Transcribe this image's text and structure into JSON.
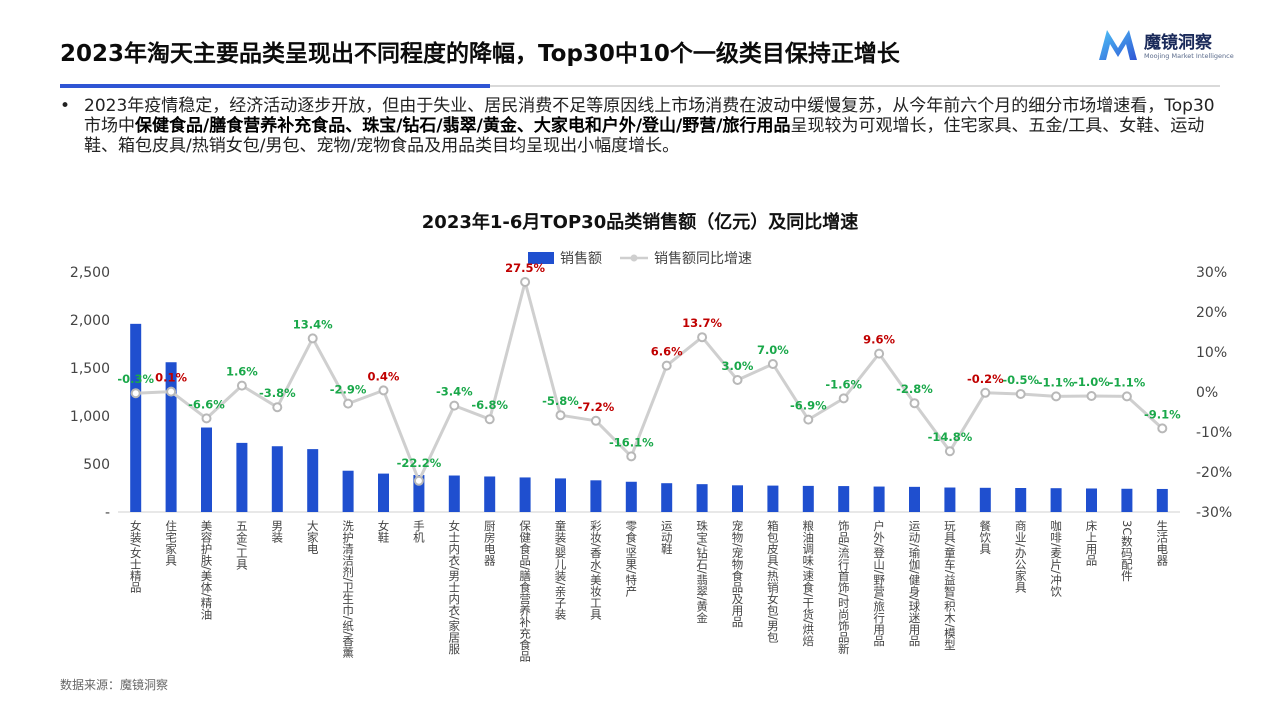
{
  "header": {
    "title": "2023年淘天主要品类呈现出不同程度的降幅，Top30中10个一级类目保持正增长",
    "logo_name": "魔镜洞察",
    "logo_sub": "Moojing Market Intelligence"
  },
  "bullet": {
    "dot": "•",
    "segments": [
      {
        "text": "2023年疫情稳定，经济活动逐步开放，但由于失业、居民消费不足等原因线上市场消费在波动中缓慢复苏，从今年前六个月的细分市场增速看，Top30市场中",
        "bold": false
      },
      {
        "text": "保健食品/膳食营养补充食品、珠宝/钻石/翡翠/黄金、大家电和户外/登山/野营/旅行用品",
        "bold": true
      },
      {
        "text": "呈现较为可观增长，住宅家具、五金/工具、女鞋、运动鞋、箱包皮具/热销女包/男包、宠物/宠物食品及用品类目均呈现出小幅度增长。",
        "bold": false
      }
    ]
  },
  "chart_data": {
    "type": "bar",
    "title": "2023年1-6月TOP30品类销售额（亿元）及同比增速",
    "legend": {
      "position": "top-center",
      "bar_label": "销售额",
      "line_label": "销售额同比增速"
    },
    "categories": [
      "女装/女士精品",
      "住宅家具",
      "美容护肤/美体/精油",
      "五金/工具",
      "男装",
      "大家电",
      "洗护清洁剂/卫生巾/纸/香薰",
      "女鞋",
      "手机",
      "女士内衣/男士内衣/家居服",
      "厨房电器",
      "保健食品/膳食营养补充食品",
      "童装/婴儿装/亲子装",
      "彩妆/香水/美妆工具",
      "零食/坚果/特产",
      "运动鞋",
      "珠宝/钻石/翡翠/黄金",
      "宠物/宠物食品及用品",
      "箱包皮具/热销女包/男包",
      "粮油调味/速食/干货/烘焙",
      "饰品/流行首饰/时尚饰品新",
      "户外/登山/野营/旅行用品",
      "运动/瑜伽/健身/球迷用品",
      "玩具/童车/益智/积木/模型",
      "餐饮具",
      "商业/办公家具",
      "咖啡/麦片/冲饮",
      "床上用品",
      "3C数码配件",
      "生活电器"
    ],
    "series": [
      {
        "name": "销售额",
        "axis": "left",
        "color": "#1f4fcf",
        "values": [
          1960,
          1560,
          880,
          720,
          685,
          655,
          430,
          400,
          385,
          380,
          370,
          360,
          350,
          330,
          315,
          300,
          290,
          278,
          275,
          272,
          270,
          265,
          262,
          255,
          252,
          250,
          248,
          245,
          242,
          240
        ]
      },
      {
        "name": "销售额同比增速",
        "axis": "right",
        "color": "#cfcfcf",
        "values": [
          -0.3,
          0.1,
          -6.6,
          1.6,
          -3.8,
          13.4,
          -2.9,
          0.4,
          -22.2,
          -3.4,
          -6.8,
          27.5,
          -5.8,
          -7.2,
          -16.1,
          6.6,
          13.7,
          3.0,
          7.0,
          -6.9,
          -1.6,
          9.6,
          -2.8,
          -14.8,
          -0.2,
          -0.5,
          -1.1,
          -1.0,
          -1.1,
          -9.1
        ],
        "labels": [
          "-0.3%",
          "0.1%",
          "-6.6%",
          "1.6%",
          "-3.8%",
          "13.4%",
          "-2.9%",
          "0.4%",
          "-22.2%",
          "-3.4%",
          "-6.8%",
          "27.5%",
          "-5.8%",
          "-7.2%",
          "-16.1%",
          "6.6%",
          "13.7%",
          "3.0%",
          "7.0%",
          "-6.9%",
          "-1.6%",
          "9.6%",
          "-2.8%",
          "-14.8%",
          "-0.2%",
          "-0.5%",
          "-1.1%",
          "-1.0%",
          "-1.1%",
          "-9.1%"
        ],
        "label_colors": [
          "#1aa84a",
          "#c00000",
          "#1aa84a",
          "#1aa84a",
          "#1aa84a",
          "#1aa84a",
          "#1aa84a",
          "#c00000",
          "#1aa84a",
          "#1aa84a",
          "#1aa84a",
          "#c00000",
          "#1aa84a",
          "#c00000",
          "#1aa84a",
          "#c00000",
          "#c00000",
          "#1aa84a",
          "#1aa84a",
          "#1aa84a",
          "#1aa84a",
          "#c00000",
          "#1aa84a",
          "#1aa84a",
          "#c00000",
          "#1aa84a",
          "#1aa84a",
          "#1aa84a",
          "#1aa84a",
          "#1aa84a"
        ]
      }
    ],
    "y_left": {
      "range": [
        0,
        2500
      ],
      "ticks": [
        "-",
        "500",
        "1,000",
        "1,500",
        "2,000",
        "2,500"
      ]
    },
    "y_right": {
      "range": [
        -30,
        30
      ],
      "ticks": [
        "-30%",
        "-20%",
        "-10%",
        "0%",
        "10%",
        "20%",
        "30%"
      ]
    },
    "grid": false
  },
  "footer": {
    "source": "数据来源：魔镜洞察"
  }
}
